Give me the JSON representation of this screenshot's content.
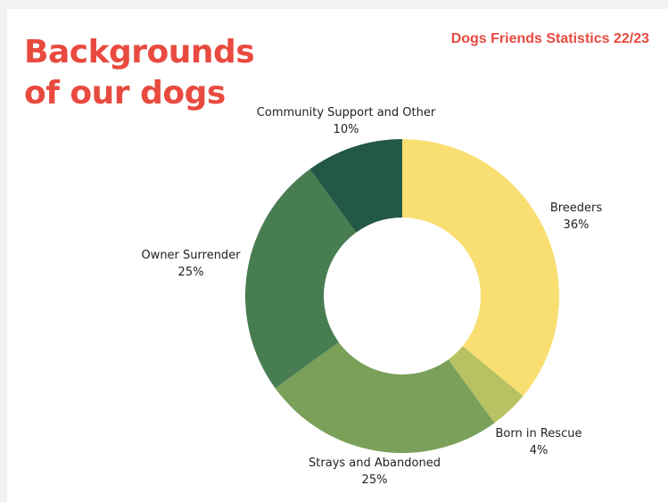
{
  "header": {
    "title_line1": "Backgrounds",
    "title_line2": "of our dogs",
    "stats_label": "Dogs Friends Statistics 22/23"
  },
  "chart_data": {
    "type": "pie",
    "donut": true,
    "title": "Backgrounds of our dogs",
    "slices": [
      {
        "label": "Breeders",
        "value": 36,
        "value_label": "36%",
        "color": "#f9de72"
      },
      {
        "label": "Born in Rescue",
        "value": 4,
        "value_label": "4%",
        "color": "#b8c262"
      },
      {
        "label": "Strays and Abandoned",
        "value": 25,
        "value_label": "25%",
        "color": "#7aa059"
      },
      {
        "label": "Owner Surrender",
        "value": 25,
        "value_label": "25%",
        "color": "#487d52"
      },
      {
        "label": "Community Support and Other",
        "value": 10,
        "value_label": "10%",
        "color": "#235847"
      }
    ]
  }
}
